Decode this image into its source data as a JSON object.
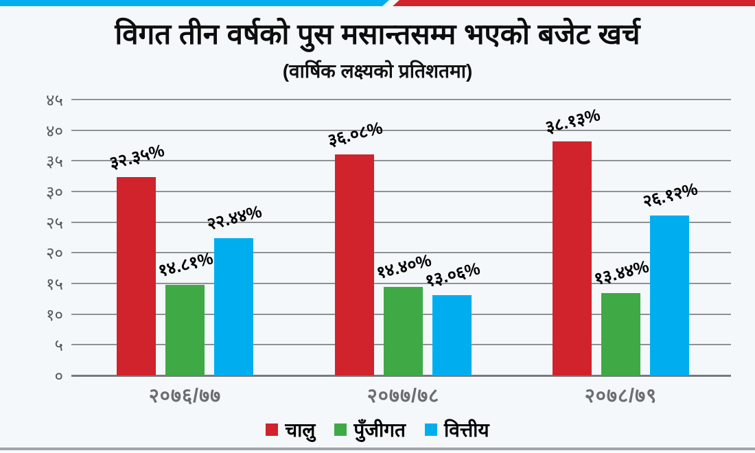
{
  "banner": {
    "left_color": "#00aeef",
    "right_color": "#d0232b"
  },
  "header": {
    "title": "विगत तीन वर्षको पुस मसान्तसम्म भएको बजेट खर्च",
    "subtitle": "(वार्षिक लक्ष्यको प्रतिशतमा)"
  },
  "chart_data": {
    "type": "bar",
    "title": "विगत तीन वर्षको पुस मसान्तसम्म भएको बजेट खर्च",
    "subtitle": "(वार्षिक लक्ष्यको प्रतिशतमा)",
    "categories": [
      "२०७६/७७",
      "२०७७/७८",
      "२०७८/७९"
    ],
    "series": [
      {
        "name": "चालु",
        "color": "#d0232b",
        "values": [
          32.35,
          36.08,
          38.13
        ],
        "labels": [
          "३२.३५%",
          "३६.०८%",
          "३८.१३%"
        ]
      },
      {
        "name": "पुँजीगत",
        "color": "#3fa946",
        "values": [
          14.81,
          14.4,
          13.44
        ],
        "labels": [
          "१४.८१%",
          "१४.४०%",
          "१३.४४%"
        ]
      },
      {
        "name": "वित्तीय",
        "color": "#00aeef",
        "values": [
          22.44,
          13.06,
          26.12
        ],
        "labels": [
          "२२.४४%",
          "१३.०६%",
          "२६.१२%"
        ]
      }
    ],
    "y_ticks": [
      {
        "value": 0,
        "label": "०"
      },
      {
        "value": 5,
        "label": "५"
      },
      {
        "value": 10,
        "label": "१०"
      },
      {
        "value": 15,
        "label": "१५"
      },
      {
        "value": 20,
        "label": "२०"
      },
      {
        "value": 25,
        "label": "२५"
      },
      {
        "value": 30,
        "label": "३०"
      },
      {
        "value": 35,
        "label": "३५"
      },
      {
        "value": 40,
        "label": "४०"
      },
      {
        "value": 45,
        "label": "४५"
      }
    ],
    "ylim": [
      0,
      45
    ],
    "xlabel": "",
    "ylabel": "",
    "grid": true,
    "legend_position": "bottom"
  }
}
